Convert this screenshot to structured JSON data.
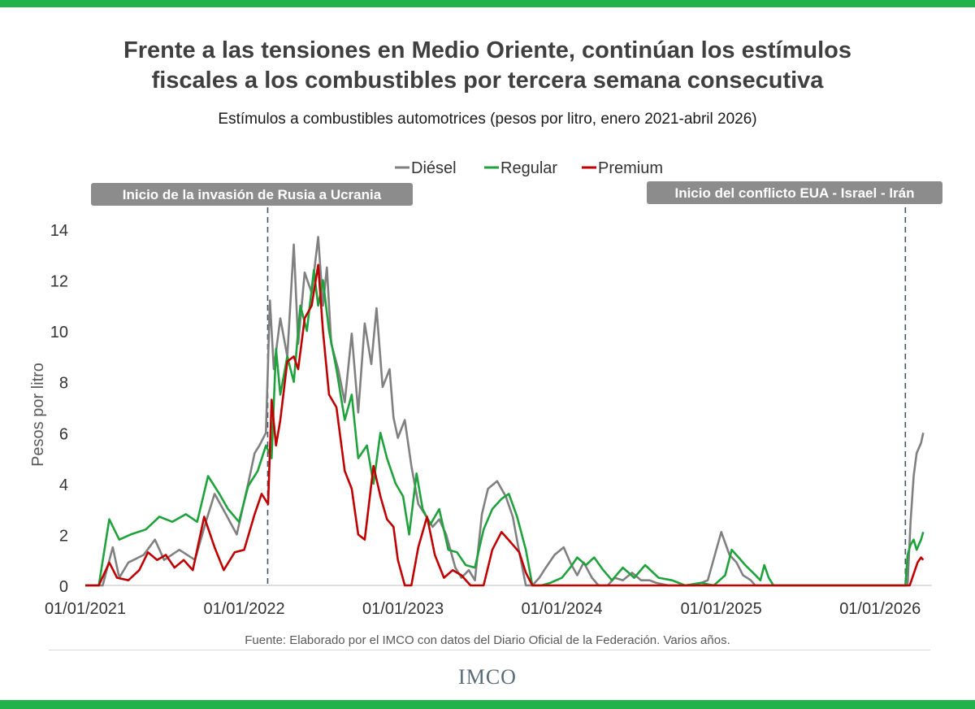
{
  "header": {
    "title_line1": "Frente a las tensiones en Medio Oriente, continúan los estímulos",
    "title_line2": "fiscales a los combustibles por tercera semana consecutiva",
    "subtitle": "Estímulos a combustibles automotrices (pesos por litro, enero 2021-abril 2026)"
  },
  "footer": {
    "source": "Fuente: Elaborado por el IMCO con datos del Diario Oficial de la Federación. Varios años.",
    "logo_text": "IMCO"
  },
  "colors": {
    "diesel": "#808080",
    "regular": "#1fa23c",
    "premium": "#c00000",
    "brand_green": "#22b24c",
    "annotation_bg": "#8c8c8c"
  },
  "chart_data": {
    "type": "line",
    "title": "",
    "xlabel": "",
    "ylabel": "Pesos por litro",
    "ylim": [
      0,
      14
    ],
    "yticks": [
      0,
      2,
      4,
      6,
      8,
      10,
      12,
      14
    ],
    "xlim": [
      "2021-01-01",
      "2026-04-30"
    ],
    "xticks": [
      "01/01/2021",
      "01/01/2022",
      "01/01/2023",
      "01/01/2024",
      "01/01/2025",
      "01/01/2026"
    ],
    "grid": false,
    "legend": "top-center",
    "annotations": [
      {
        "label": "Inicio de la invasión  de Rusia a Ucrania",
        "date": "2022-02-24"
      },
      {
        "label": "Inicio del conflicto EUA - Israel - Irán",
        "date": "2026-02-28"
      }
    ],
    "series": [
      {
        "name": "Diésel",
        "dates": [
          "2021-01-01",
          "2021-02-10",
          "2021-03-05",
          "2021-03-20",
          "2021-04-10",
          "2021-05-15",
          "2021-06-10",
          "2021-07-01",
          "2021-08-05",
          "2021-09-10",
          "2021-10-05",
          "2021-10-25",
          "2021-11-20",
          "2021-12-15",
          "2022-01-10",
          "2022-01-25",
          "2022-02-05",
          "2022-02-20",
          "2022-03-01",
          "2022-03-10",
          "2022-03-25",
          "2022-04-10",
          "2022-04-25",
          "2022-05-05",
          "2022-05-20",
          "2022-06-05",
          "2022-06-20",
          "2022-07-01",
          "2022-07-10",
          "2022-07-20",
          "2022-08-05",
          "2022-08-20",
          "2022-09-05",
          "2022-09-20",
          "2022-10-05",
          "2022-10-20",
          "2022-11-01",
          "2022-11-15",
          "2022-12-01",
          "2022-12-10",
          "2022-12-20",
          "2023-01-05",
          "2023-01-20",
          "2023-02-05",
          "2023-02-20",
          "2023-03-10",
          "2023-03-25",
          "2023-04-10",
          "2023-05-01",
          "2023-05-15",
          "2023-06-01",
          "2023-06-15",
          "2023-07-01",
          "2023-07-15",
          "2023-08-05",
          "2023-08-25",
          "2023-09-10",
          "2023-09-25",
          "2023-10-10",
          "2023-10-25",
          "2023-11-10",
          "2023-11-25",
          "2023-12-15",
          "2024-01-05",
          "2024-01-20",
          "2024-02-05",
          "2024-02-20",
          "2024-03-10",
          "2024-03-25",
          "2024-04-15",
          "2024-05-01",
          "2024-05-20",
          "2024-06-10",
          "2024-07-01",
          "2024-07-20",
          "2024-08-05",
          "2024-09-01",
          "2024-10-01",
          "2024-11-01",
          "2024-12-01",
          "2025-01-01",
          "2025-01-20",
          "2025-02-05",
          "2025-02-20",
          "2025-03-10",
          "2025-03-20",
          "2025-04-01",
          "2025-06-01",
          "2025-09-01",
          "2025-12-01",
          "2026-02-28",
          "2026-03-05",
          "2026-03-12",
          "2026-03-19",
          "2026-03-26",
          "2026-04-05",
          "2026-04-10"
        ],
        "values": [
          0,
          0,
          1.5,
          0.3,
          0.9,
          1.2,
          1.8,
          1.0,
          1.4,
          1.0,
          2.5,
          3.6,
          2.8,
          2.0,
          4.0,
          5.2,
          5.5,
          6.0,
          11.2,
          8.5,
          10.5,
          9.0,
          13.4,
          9.5,
          12.3,
          11.5,
          13.7,
          11.0,
          12.5,
          9.5,
          8.5,
          7.2,
          9.9,
          6.8,
          10.3,
          8.7,
          10.9,
          7.8,
          8.5,
          6.6,
          5.8,
          6.5,
          4.7,
          3.2,
          2.8,
          2.3,
          2.6,
          2.0,
          0.7,
          0.3,
          0.6,
          0.2,
          2.8,
          3.8,
          4.1,
          3.5,
          2.7,
          1.3,
          0,
          0,
          0.3,
          0.7,
          1.2,
          1.5,
          0.9,
          0.4,
          0.9,
          0.3,
          0,
          0,
          0.3,
          0.2,
          0.5,
          0.2,
          0.2,
          0.1,
          0,
          0,
          0,
          0.2,
          2.1,
          1.2,
          0.9,
          0.4,
          0.2,
          0,
          0,
          0,
          0,
          0,
          0,
          0,
          2.5,
          4.3,
          5.2,
          5.6,
          6.0
        ]
      },
      {
        "name": "Regular",
        "dates": [
          "2021-01-01",
          "2021-02-01",
          "2021-02-25",
          "2021-03-20",
          "2021-04-15",
          "2021-05-20",
          "2021-06-20",
          "2021-07-20",
          "2021-08-20",
          "2021-09-15",
          "2021-10-10",
          "2021-11-05",
          "2021-11-25",
          "2021-12-20",
          "2022-01-10",
          "2022-02-01",
          "2022-02-20",
          "2022-03-05",
          "2022-03-15",
          "2022-03-25",
          "2022-04-10",
          "2022-04-25",
          "2022-05-10",
          "2022-05-25",
          "2022-06-10",
          "2022-06-20",
          "2022-07-01",
          "2022-07-15",
          "2022-08-01",
          "2022-08-20",
          "2022-09-05",
          "2022-09-20",
          "2022-10-10",
          "2022-10-25",
          "2022-11-10",
          "2022-11-25",
          "2022-12-15",
          "2023-01-01",
          "2023-01-15",
          "2023-02-01",
          "2023-02-15",
          "2023-03-05",
          "2023-03-25",
          "2023-04-15",
          "2023-05-05",
          "2023-05-25",
          "2023-06-15",
          "2023-07-05",
          "2023-07-25",
          "2023-08-15",
          "2023-09-01",
          "2023-09-20",
          "2023-10-10",
          "2023-10-25",
          "2023-11-15",
          "2023-12-05",
          "2024-01-01",
          "2024-01-20",
          "2024-02-05",
          "2024-02-25",
          "2024-03-15",
          "2024-04-05",
          "2024-04-25",
          "2024-05-20",
          "2024-06-15",
          "2024-07-10",
          "2024-08-10",
          "2024-09-10",
          "2024-10-10",
          "2024-11-15",
          "2024-12-15",
          "2025-01-10",
          "2025-01-25",
          "2025-02-10",
          "2025-02-25",
          "2025-03-15",
          "2025-04-01",
          "2025-04-10",
          "2025-04-20",
          "2025-05-01",
          "2025-06-01",
          "2025-09-01",
          "2025-12-01",
          "2026-02-28",
          "2026-03-05",
          "2026-03-12",
          "2026-03-19",
          "2026-03-26",
          "2026-04-05",
          "2026-04-10"
        ],
        "values": [
          0,
          0,
          2.6,
          1.8,
          2.0,
          2.2,
          2.7,
          2.5,
          2.8,
          2.5,
          4.3,
          3.6,
          3.0,
          2.5,
          3.9,
          4.5,
          5.5,
          5.0,
          9.3,
          7.5,
          9.0,
          8.0,
          11.0,
          10.0,
          12.4,
          11.0,
          12.0,
          10.0,
          8.5,
          6.5,
          7.5,
          5.0,
          5.5,
          4.0,
          6.0,
          5.0,
          4.0,
          3.5,
          2.0,
          4.4,
          3.0,
          2.4,
          3.0,
          1.4,
          1.3,
          0.8,
          0.7,
          2.2,
          3.0,
          3.4,
          3.6,
          2.7,
          1.4,
          0,
          0,
          0.1,
          0.3,
          0.7,
          1.1,
          0.8,
          1.1,
          0.6,
          0.2,
          0.7,
          0.3,
          0.8,
          0.3,
          0.2,
          0,
          0.1,
          0,
          0.4,
          1.4,
          1.1,
          0.8,
          0.5,
          0.2,
          0.8,
          0.3,
          0,
          0,
          0,
          0,
          0,
          1.2,
          1.6,
          1.8,
          1.4,
          1.8,
          2.1
        ]
      },
      {
        "name": "Premium",
        "dates": [
          "2021-01-01",
          "2021-02-01",
          "2021-02-25",
          "2021-03-15",
          "2021-04-10",
          "2021-05-05",
          "2021-05-25",
          "2021-06-15",
          "2021-07-05",
          "2021-07-25",
          "2021-08-15",
          "2021-09-05",
          "2021-10-01",
          "2021-10-25",
          "2021-11-15",
          "2021-12-10",
          "2022-01-01",
          "2022-01-25",
          "2022-02-10",
          "2022-02-25",
          "2022-03-05",
          "2022-03-15",
          "2022-03-25",
          "2022-04-10",
          "2022-04-25",
          "2022-05-05",
          "2022-05-20",
          "2022-06-05",
          "2022-06-20",
          "2022-07-01",
          "2022-07-15",
          "2022-08-01",
          "2022-08-20",
          "2022-09-05",
          "2022-09-20",
          "2022-10-05",
          "2022-10-25",
          "2022-11-10",
          "2022-11-25",
          "2022-12-10",
          "2022-12-20",
          "2023-01-05",
          "2023-01-20",
          "2023-02-05",
          "2023-02-25",
          "2023-03-15",
          "2023-04-05",
          "2023-04-25",
          "2023-05-15",
          "2023-06-05",
          "2023-07-05",
          "2023-07-25",
          "2023-08-15",
          "2023-09-05",
          "2023-09-25",
          "2023-10-10",
          "2023-10-25",
          "2024-01-01",
          "2025-01-01",
          "2026-02-28",
          "2026-03-10",
          "2026-03-20",
          "2026-03-28",
          "2026-04-05",
          "2026-04-10"
        ],
        "values": [
          0,
          0,
          0.9,
          0.3,
          0.2,
          0.6,
          1.3,
          1.0,
          1.2,
          0.7,
          1.0,
          0.6,
          2.7,
          1.5,
          0.6,
          1.3,
          1.4,
          2.8,
          3.6,
          3.2,
          7.3,
          5.5,
          6.5,
          8.8,
          9.0,
          8.5,
          10.5,
          11.0,
          12.6,
          10.0,
          7.5,
          7.0,
          4.5,
          3.8,
          2.0,
          1.8,
          4.7,
          3.5,
          2.6,
          2.3,
          1.0,
          0,
          0,
          1.5,
          2.7,
          1.2,
          0.3,
          0.6,
          0.4,
          0,
          0,
          1.4,
          2.1,
          1.7,
          1.3,
          0.5,
          0,
          0,
          0,
          0,
          0,
          0.5,
          0.9,
          1.1,
          1.0
        ]
      }
    ]
  }
}
